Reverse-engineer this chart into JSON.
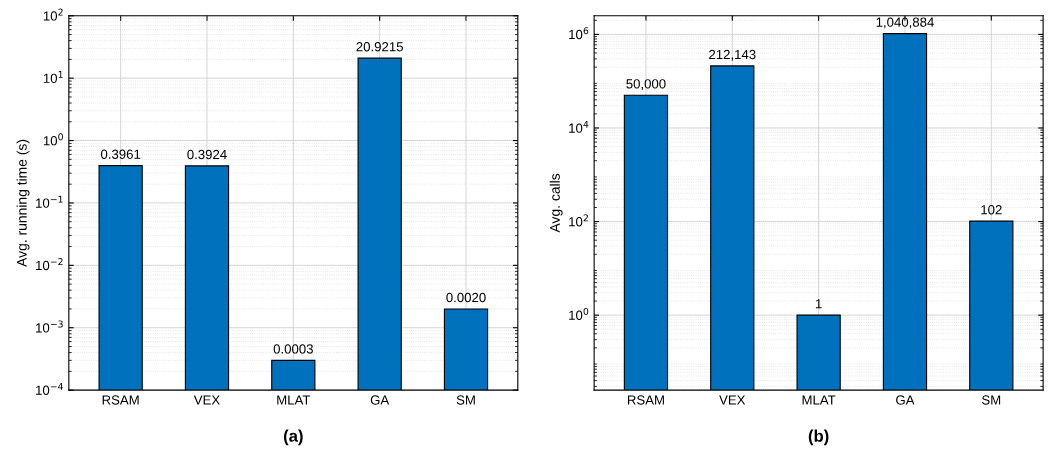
{
  "chart_data": [
    {
      "type": "bar",
      "title": "(a)",
      "ylabel": "Avg. running time (s)",
      "categories": [
        "RSAM",
        "VEX",
        "MLAT",
        "GA",
        "SM"
      ],
      "values": [
        0.3961,
        0.3924,
        0.0003,
        20.9215,
        0.002
      ],
      "value_labels": [
        "0.3961",
        "0.3924",
        "0.0003",
        "20.9215",
        "0.0020"
      ],
      "color": "#0072bd",
      "log": "y",
      "grid": true,
      "ylim": [
        0.0001,
        100
      ],
      "yticks": [
        {
          "value": 0.0001,
          "label": "10$^{−4}$"
        },
        {
          "value": 0.001,
          "label": "10$^{−3}$"
        },
        {
          "value": 0.01,
          "label": "10$^{−2}$"
        },
        {
          "value": 0.1,
          "label": "10$^{−1}$"
        },
        {
          "value": 1,
          "label": "10$^{0}$"
        },
        {
          "value": 10,
          "label": "10$^{1}$"
        },
        {
          "value": 100,
          "label": "10$^{2}$"
        }
      ]
    },
    {
      "type": "bar",
      "title": "(b)",
      "ylabel": "Avg. calls",
      "categories": [
        "RSAM",
        "VEX",
        "MLAT",
        "GA",
        "SM"
      ],
      "values": [
        50000,
        212143,
        1,
        1040884,
        102
      ],
      "value_labels": [
        "50,000",
        "212,143",
        "1",
        "1,040,884",
        "102"
      ],
      "color": "#0072bd",
      "log": "y",
      "grid": true,
      "ylim": [
        0.025,
        2500000
      ],
      "yticks": [
        {
          "value": 1,
          "label": "10$^{0}$"
        },
        {
          "value": 100,
          "label": "10$^{2}$"
        },
        {
          "value": 10000,
          "label": "10$^{4}$"
        },
        {
          "value": 1000000,
          "label": "10$^{6}$"
        }
      ]
    }
  ]
}
